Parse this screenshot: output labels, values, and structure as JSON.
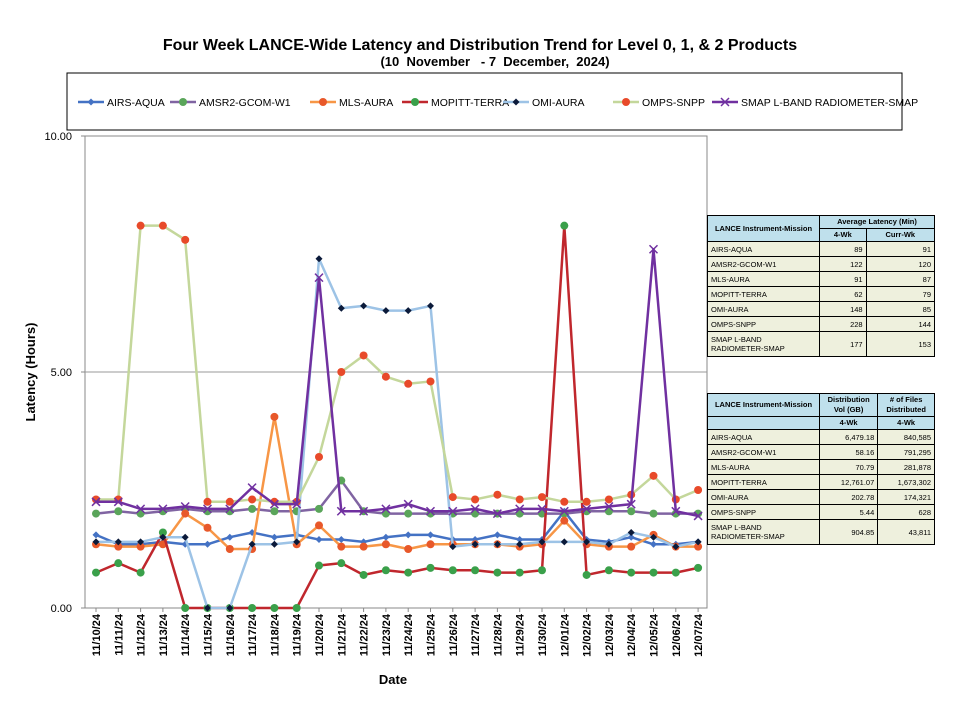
{
  "chart_data": {
    "type": "line",
    "title": "Four Week LANCE-Wide Latency and Distribution Trend for Level 0, 1, & 2 Products",
    "subtitle": "(10  November   - 7  December,  2024)",
    "xlabel": "Date",
    "ylabel": "Latency (Hours)",
    "ylim": [
      0,
      10
    ],
    "yticks": [
      "0.00",
      "5.00",
      "10.00"
    ],
    "legend_position": "top",
    "categories": [
      "11/10/24",
      "11/11/24",
      "11/12/24",
      "11/13/24",
      "11/14/24",
      "11/15/24",
      "11/16/24",
      "11/17/24",
      "11/18/24",
      "11/19/24",
      "11/20/24",
      "11/21/24",
      "11/22/24",
      "11/23/24",
      "11/24/24",
      "11/25/24",
      "11/26/24",
      "11/27/24",
      "11/28/24",
      "11/29/24",
      "11/30/24",
      "12/01/24",
      "12/02/24",
      "12/03/24",
      "12/04/24",
      "12/05/24",
      "12/06/24",
      "12/07/24"
    ],
    "series": [
      {
        "name": "AIRS-AQUA",
        "color": "#4472c4",
        "marker": "diamond",
        "values": [
          1.55,
          1.35,
          1.35,
          1.4,
          1.35,
          1.35,
          1.5,
          1.6,
          1.5,
          1.55,
          1.45,
          1.45,
          1.4,
          1.5,
          1.55,
          1.55,
          1.45,
          1.45,
          1.55,
          1.45,
          1.45,
          2.05,
          1.45,
          1.4,
          1.5,
          1.35,
          1.35,
          1.4
        ]
      },
      {
        "name": "AMSR2-GCOM-W1",
        "color": "#8064a2",
        "marker": "circle",
        "values": [
          2.0,
          2.05,
          2.0,
          2.05,
          2.1,
          2.05,
          2.05,
          2.1,
          2.05,
          2.05,
          2.1,
          2.7,
          2.05,
          2.0,
          2.0,
          2.0,
          2.0,
          2.0,
          2.0,
          2.0,
          2.0,
          2.0,
          2.05,
          2.05,
          2.05,
          2.0,
          2.0,
          2.0
        ]
      },
      {
        "name": "MLS-AURA",
        "color": "#f79646",
        "marker": "circle",
        "values": [
          1.35,
          1.3,
          1.3,
          1.35,
          2.0,
          1.7,
          1.25,
          1.25,
          4.05,
          1.35,
          1.75,
          1.3,
          1.3,
          1.35,
          1.25,
          1.35,
          1.35,
          1.35,
          1.35,
          1.3,
          1.35,
          1.85,
          1.35,
          1.3,
          1.3,
          1.55,
          1.3,
          1.3
        ]
      },
      {
        "name": "MOPITT-TERRA",
        "color": "#c0272d",
        "marker": "circle",
        "values": [
          0.75,
          0.95,
          0.75,
          1.6,
          0.0,
          0.0,
          0.0,
          0.0,
          0.0,
          0.0,
          0.9,
          0.95,
          0.7,
          0.8,
          0.75,
          0.85,
          0.8,
          0.8,
          0.75,
          0.75,
          0.8,
          8.1,
          0.7,
          0.8,
          0.75,
          0.75,
          0.75,
          0.85
        ]
      },
      {
        "name": "OMI-AURA",
        "color": "#9dc3e6",
        "marker": "diamond",
        "values": [
          1.4,
          1.4,
          1.4,
          1.5,
          1.5,
          0.0,
          0.0,
          1.35,
          1.35,
          1.4,
          7.4,
          6.35,
          6.4,
          6.3,
          6.3,
          6.4,
          1.3,
          1.35,
          1.35,
          1.35,
          1.4,
          1.4,
          1.4,
          1.35,
          1.6,
          1.5,
          1.3,
          1.4
        ]
      },
      {
        "name": "OMPS-SNPP",
        "color": "#c4d79b",
        "marker": "circle",
        "values": [
          2.3,
          2.3,
          8.1,
          8.1,
          7.8,
          2.25,
          2.25,
          2.3,
          2.25,
          2.25,
          3.2,
          5.0,
          5.35,
          4.9,
          4.75,
          4.8,
          2.35,
          2.3,
          2.4,
          2.3,
          2.35,
          2.25,
          2.25,
          2.3,
          2.4,
          2.8,
          2.3,
          2.5
        ]
      },
      {
        "name": "SMAP L-BAND RADIOMETER-SMAP",
        "color": "#7030a0",
        "marker": "x",
        "values": [
          2.25,
          2.25,
          2.1,
          2.1,
          2.15,
          2.1,
          2.1,
          2.55,
          2.2,
          2.2,
          7.0,
          2.05,
          2.05,
          2.1,
          2.2,
          2.05,
          2.05,
          2.1,
          2.0,
          2.1,
          2.1,
          2.05,
          2.1,
          2.15,
          2.2,
          7.6,
          2.05,
          1.95
        ]
      }
    ]
  },
  "latency_table": {
    "header_instrument": "LANCE Instrument-Mission",
    "header_group": "Average Latency (Min)",
    "col1": "4-Wk",
    "col2": "Curr-Wk",
    "rows": [
      {
        "name": "AIRS-AQUA",
        "a": "89",
        "b": "91"
      },
      {
        "name": "AMSR2-GCOM-W1",
        "a": "122",
        "b": "120"
      },
      {
        "name": "MLS-AURA",
        "a": "91",
        "b": "87"
      },
      {
        "name": "MOPITT-TERRA",
        "a": "62",
        "b": "79"
      },
      {
        "name": "OMI-AURA",
        "a": "148",
        "b": "85"
      },
      {
        "name": "OMPS-SNPP",
        "a": "228",
        "b": "144"
      },
      {
        "name": "SMAP L-BAND RADIOMETER-SMAP",
        "a": "177",
        "b": "153"
      }
    ]
  },
  "distribution_table": {
    "header_instrument": "LANCE Instrument-Mission",
    "header_col1": "Distribution Vol (GB)",
    "header_col2": "# of Files Distributed",
    "col1": "4-Wk",
    "col2": "4-Wk",
    "rows": [
      {
        "name": "AIRS-AQUA",
        "a": "6,479.18",
        "b": "840,585"
      },
      {
        "name": "AMSR2-GCOM-W1",
        "a": "58.16",
        "b": "791,295"
      },
      {
        "name": "MLS-AURA",
        "a": "70.79",
        "b": "281,878"
      },
      {
        "name": "MOPITT-TERRA",
        "a": "12,761.07",
        "b": "1,673,302"
      },
      {
        "name": "OMI-AURA",
        "a": "202.78",
        "b": "174,321"
      },
      {
        "name": "OMPS-SNPP",
        "a": "5.44",
        "b": "628"
      },
      {
        "name": "SMAP L-BAND RADIOMETER-SMAP",
        "a": "904.85",
        "b": "43,811"
      }
    ]
  }
}
